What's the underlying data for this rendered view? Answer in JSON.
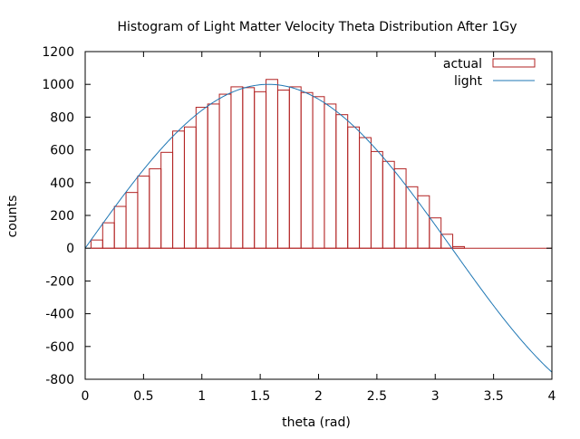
{
  "chart_data": {
    "type": "bar",
    "title": "Histogram of Light Matter Velocity Theta Distribution After 1Gy",
    "xlabel": "theta (rad)",
    "ylabel": "counts",
    "xlim": [
      0,
      4
    ],
    "ylim": [
      -800,
      1200
    ],
    "x_ticks": [
      0,
      0.5,
      1,
      1.5,
      2,
      2.5,
      3,
      3.5,
      4
    ],
    "x_tick_labels": [
      "0",
      "0.5",
      "1",
      "1.5",
      "2",
      "2.5",
      "3",
      "3.5",
      "4"
    ],
    "y_ticks": [
      -800,
      -600,
      -400,
      -200,
      0,
      200,
      400,
      600,
      800,
      1000,
      1200
    ],
    "y_tick_labels": [
      "-800",
      "-600",
      "-400",
      "-200",
      "0",
      "200",
      "400",
      "600",
      "800",
      "1000",
      "1200"
    ],
    "grid": false,
    "legend_position": "top-right",
    "series": [
      {
        "name": "actual",
        "kind": "histogram",
        "color": "#b22222",
        "bin_width": 0.1,
        "bin_starts": [
          0.05,
          0.15,
          0.25,
          0.35,
          0.45,
          0.55,
          0.65,
          0.75,
          0.85,
          0.95,
          1.05,
          1.15,
          1.25,
          1.35,
          1.45,
          1.55,
          1.65,
          1.75,
          1.85,
          1.95,
          2.05,
          2.15,
          2.25,
          2.35,
          2.45,
          2.55,
          2.65,
          2.75,
          2.85,
          2.95,
          3.05,
          3.15
        ],
        "values": [
          50,
          155,
          255,
          340,
          440,
          485,
          585,
          715,
          740,
          860,
          880,
          940,
          985,
          980,
          955,
          1030,
          965,
          985,
          950,
          925,
          880,
          815,
          740,
          675,
          590,
          530,
          485,
          375,
          320,
          185,
          85,
          10
        ]
      },
      {
        "name": "light",
        "kind": "function",
        "formula": "1000*sin(x)",
        "color": "#1f77b4"
      }
    ]
  }
}
